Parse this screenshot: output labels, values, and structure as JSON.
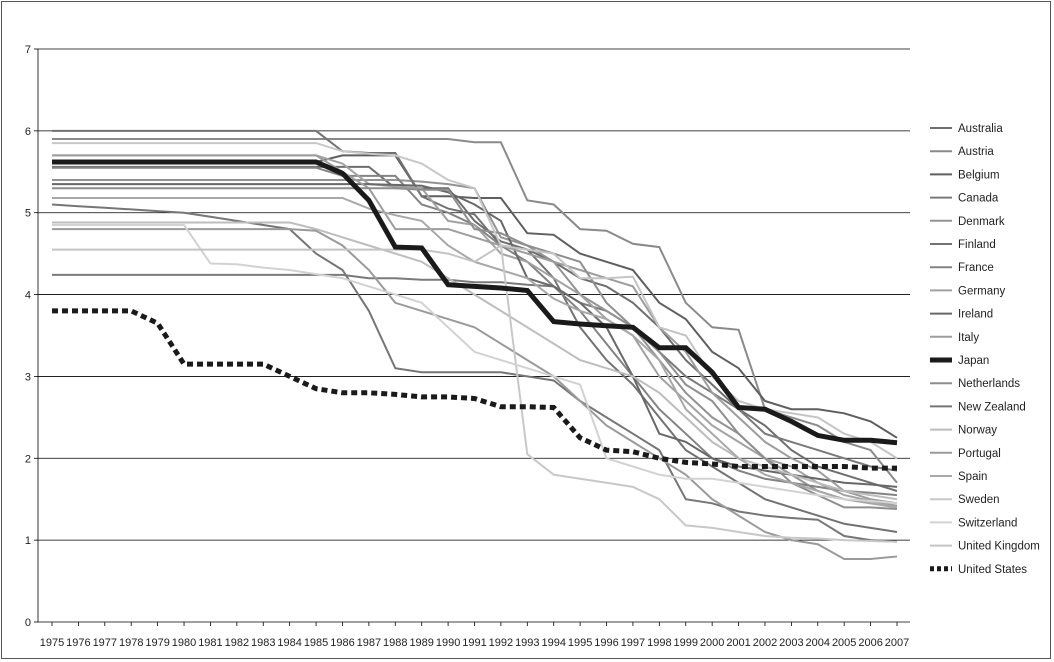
{
  "chart_data": {
    "type": "line",
    "title": "",
    "xlabel": "",
    "ylabel": "",
    "ylim": [
      0,
      7
    ],
    "yticks": [
      "0",
      "1",
      "2",
      "3",
      "4",
      "5",
      "6",
      "7"
    ],
    "grid": "horizontal",
    "legend_position": "right",
    "x": [
      "1975",
      "1976",
      "1977",
      "1978",
      "1979",
      "1980",
      "1981",
      "1982",
      "1983",
      "1984",
      "1985",
      "1986",
      "1987",
      "1988",
      "1989",
      "1990",
      "1991",
      "1992",
      "1993",
      "1994",
      "1995",
      "1996",
      "1997",
      "1998",
      "1999",
      "2000",
      "2001",
      "2002",
      "2003",
      "2004",
      "2005",
      "2006",
      "2007"
    ],
    "series": [
      {
        "name": "Australia",
        "color": "#6e6e6e",
        "width": 2,
        "dash": "",
        "values": [
          5.56,
          5.56,
          5.56,
          5.56,
          5.56,
          5.56,
          5.56,
          5.56,
          5.56,
          5.56,
          5.56,
          5.56,
          5.56,
          5.3,
          5.3,
          5.3,
          4.9,
          4.65,
          4.55,
          4.4,
          4.2,
          4.1,
          3.9,
          3.6,
          3.2,
          2.9,
          2.6,
          2.4,
          2.1,
          1.9,
          1.8,
          1.7,
          1.6
        ]
      },
      {
        "name": "Austria",
        "color": "#8a8a8a",
        "width": 2,
        "dash": "",
        "values": [
          5.9,
          5.9,
          5.9,
          5.9,
          5.9,
          5.9,
          5.9,
          5.9,
          5.9,
          5.9,
          5.9,
          5.9,
          5.9,
          5.9,
          5.9,
          5.9,
          5.86,
          5.86,
          5.15,
          5.1,
          4.8,
          4.78,
          4.62,
          4.58,
          3.9,
          3.6,
          3.57,
          2.6,
          2.5,
          2.4,
          2.2,
          2.1,
          1.7
        ]
      },
      {
        "name": "Belgium",
        "color": "#5f5f5f",
        "width": 2,
        "dash": "",
        "values": [
          5.62,
          5.62,
          5.62,
          5.62,
          5.62,
          5.62,
          5.62,
          5.62,
          5.62,
          5.62,
          5.62,
          5.7,
          5.7,
          5.7,
          5.2,
          5.2,
          5.18,
          5.18,
          4.75,
          4.73,
          4.5,
          4.4,
          4.3,
          3.9,
          3.7,
          3.3,
          3.1,
          2.7,
          2.6,
          2.6,
          2.55,
          2.45,
          2.25
        ]
      },
      {
        "name": "Canada",
        "color": "#7a7a7a",
        "width": 2,
        "dash": "",
        "values": [
          4.24,
          4.24,
          4.24,
          4.24,
          4.24,
          4.24,
          4.24,
          4.24,
          4.24,
          4.24,
          4.24,
          4.24,
          4.2,
          4.2,
          4.18,
          4.18,
          4.15,
          4.15,
          4.12,
          4.1,
          3.9,
          3.8,
          3.6,
          3.3,
          3.0,
          2.8,
          2.6,
          2.3,
          2.2,
          2.1,
          2.0,
          1.9,
          1.85
        ]
      },
      {
        "name": "Denmark",
        "color": "#939393",
        "width": 2,
        "dash": "",
        "values": [
          5.4,
          5.4,
          5.4,
          5.4,
          5.4,
          5.4,
          5.4,
          5.4,
          5.4,
          5.4,
          5.4,
          5.4,
          5.4,
          5.4,
          5.38,
          5.35,
          5.3,
          4.7,
          4.6,
          4.4,
          4.0,
          3.8,
          3.6,
          3.2,
          2.8,
          2.5,
          2.3,
          2.0,
          1.8,
          1.6,
          1.5,
          1.45,
          1.4
        ]
      },
      {
        "name": "Finland",
        "color": "#727272",
        "width": 2,
        "dash": "",
        "values": [
          6.0,
          6.0,
          6.0,
          6.0,
          6.0,
          6.0,
          6.0,
          6.0,
          6.0,
          6.0,
          6.0,
          5.75,
          5.73,
          5.73,
          5.2,
          5.05,
          4.98,
          4.6,
          4.55,
          4.2,
          3.6,
          3.2,
          2.9,
          2.5,
          2.1,
          1.9,
          1.7,
          1.5,
          1.4,
          1.3,
          1.2,
          1.15,
          1.1
        ]
      },
      {
        "name": "France",
        "color": "#838383",
        "width": 2,
        "dash": "",
        "values": [
          5.55,
          5.55,
          5.55,
          5.55,
          5.55,
          5.55,
          5.55,
          5.55,
          5.55,
          5.55,
          5.55,
          5.45,
          5.45,
          5.45,
          5.1,
          5.0,
          4.85,
          4.6,
          4.4,
          4.1,
          3.8,
          3.4,
          3.0,
          2.6,
          2.3,
          2.0,
          1.85,
          1.75,
          1.7,
          1.65,
          1.6,
          1.58,
          1.55
        ]
      },
      {
        "name": "Germany",
        "color": "#a2a2a2",
        "width": 2,
        "dash": "",
        "values": [
          5.7,
          5.7,
          5.7,
          5.7,
          5.7,
          5.7,
          5.7,
          5.7,
          5.7,
          5.7,
          5.7,
          5.6,
          5.35,
          5.32,
          5.3,
          4.9,
          4.85,
          4.5,
          4.4,
          4.2,
          4.0,
          3.7,
          3.5,
          3.0,
          2.7,
          2.4,
          2.2,
          2.0,
          1.9,
          1.7,
          1.55,
          1.48,
          1.42
        ]
      },
      {
        "name": "Ireland",
        "color": "#686868",
        "width": 2,
        "dash": "",
        "values": [
          5.35,
          5.35,
          5.35,
          5.35,
          5.35,
          5.35,
          5.35,
          5.35,
          5.35,
          5.35,
          5.35,
          5.35,
          5.35,
          5.34,
          5.33,
          5.25,
          5.1,
          4.9,
          4.2,
          4.1,
          3.9,
          3.6,
          3.0,
          2.3,
          2.2,
          2.0,
          1.9,
          1.85,
          1.8,
          1.75,
          1.7,
          1.68,
          1.65
        ]
      },
      {
        "name": "Italy",
        "color": "#9d9d9d",
        "width": 2,
        "dash": "",
        "values": [
          5.7,
          5.7,
          5.7,
          5.7,
          5.7,
          5.7,
          5.7,
          5.7,
          5.7,
          5.7,
          5.7,
          5.5,
          5.3,
          4.8,
          4.8,
          4.8,
          4.7,
          4.6,
          4.5,
          4.4,
          4.3,
          4.2,
          4.1,
          3.6,
          3.3,
          2.8,
          2.5,
          2.2,
          2.0,
          1.85,
          1.6,
          1.5,
          1.45
        ]
      },
      {
        "name": "Japan",
        "color": "#1a1a1a",
        "width": 5,
        "dash": "",
        "values": [
          5.62,
          5.62,
          5.62,
          5.62,
          5.62,
          5.62,
          5.62,
          5.62,
          5.62,
          5.62,
          5.62,
          5.48,
          5.15,
          4.58,
          4.57,
          4.12,
          4.1,
          4.08,
          4.05,
          3.67,
          3.64,
          3.62,
          3.6,
          3.35,
          3.35,
          3.05,
          2.62,
          2.6,
          2.45,
          2.28,
          2.22,
          2.22,
          2.19
        ]
      },
      {
        "name": "Netherlands",
        "color": "#8e8e8e",
        "width": 2,
        "dash": "",
        "values": [
          5.3,
          5.3,
          5.3,
          5.3,
          5.3,
          5.3,
          5.3,
          5.3,
          5.3,
          5.3,
          5.3,
          5.3,
          5.3,
          5.3,
          5.28,
          5.28,
          4.8,
          4.75,
          4.6,
          4.5,
          4.4,
          3.9,
          3.6,
          3.3,
          2.9,
          2.7,
          2.3,
          2.0,
          1.7,
          1.55,
          1.4,
          1.4,
          1.38
        ]
      },
      {
        "name": "New Zealand",
        "color": "#767676",
        "width": 2,
        "dash": "",
        "values": [
          5.1,
          5.08,
          5.06,
          5.04,
          5.02,
          5.0,
          4.95,
          4.9,
          4.85,
          4.8,
          4.5,
          4.3,
          3.8,
          3.1,
          3.05,
          3.05,
          3.05,
          3.05,
          3.0,
          2.95,
          2.7,
          2.5,
          2.3,
          2.1,
          1.5,
          1.45,
          1.35,
          1.3,
          1.27,
          1.25,
          1.05,
          1.0,
          0.98
        ]
      },
      {
        "name": "Norway",
        "color": "#bdbdbd",
        "width": 2,
        "dash": "",
        "values": [
          4.88,
          4.88,
          4.88,
          4.88,
          4.88,
          4.88,
          4.88,
          4.88,
          4.88,
          4.88,
          4.8,
          4.7,
          4.6,
          4.5,
          4.4,
          4.2,
          4.0,
          3.8,
          3.6,
          3.4,
          3.2,
          3.1,
          3.0,
          2.8,
          2.5,
          2.2,
          2.0,
          1.9,
          1.8,
          1.7,
          1.6,
          1.55,
          1.5
        ]
      },
      {
        "name": "Portugal",
        "color": "#9a9a9a",
        "width": 2,
        "dash": "",
        "values": [
          4.8,
          4.8,
          4.8,
          4.8,
          4.8,
          4.8,
          4.8,
          4.8,
          4.8,
          4.8,
          4.78,
          4.6,
          4.3,
          3.9,
          3.8,
          3.7,
          3.6,
          3.4,
          3.2,
          3.0,
          2.7,
          2.4,
          2.2,
          2.0,
          1.8,
          1.5,
          1.3,
          1.1,
          1.0,
          0.95,
          0.77,
          0.77,
          0.8
        ]
      },
      {
        "name": "Spain",
        "color": "#a8a8a8",
        "width": 2,
        "dash": "",
        "values": [
          5.18,
          5.18,
          5.18,
          5.18,
          5.18,
          5.18,
          5.18,
          5.18,
          5.18,
          5.18,
          5.18,
          5.18,
          5.05,
          4.97,
          4.9,
          4.6,
          4.4,
          4.3,
          4.2,
          3.95,
          3.8,
          3.7,
          3.5,
          3.2,
          2.6,
          2.3,
          2.0,
          1.8,
          1.7,
          1.6,
          1.5,
          1.45,
          1.4
        ]
      },
      {
        "name": "Sweden",
        "color": "#c8c8c8",
        "width": 2,
        "dash": "",
        "values": [
          5.85,
          5.85,
          5.85,
          5.85,
          5.85,
          5.85,
          5.85,
          5.85,
          5.85,
          5.85,
          5.85,
          5.75,
          5.72,
          5.7,
          5.6,
          5.4,
          5.3,
          4.6,
          2.05,
          1.8,
          1.75,
          1.7,
          1.65,
          1.5,
          1.18,
          1.15,
          1.1,
          1.05,
          1.03,
          1.02,
          1.0,
          0.99,
          0.98
        ]
      },
      {
        "name": "Switzerland",
        "color": "#d2d2d2",
        "width": 2,
        "dash": "",
        "values": [
          4.85,
          4.85,
          4.85,
          4.85,
          4.85,
          4.85,
          4.38,
          4.37,
          4.33,
          4.3,
          4.25,
          4.2,
          4.1,
          4.0,
          3.9,
          3.6,
          3.3,
          3.2,
          3.1,
          3.0,
          2.9,
          2.0,
          1.9,
          1.8,
          1.75,
          1.75,
          1.7,
          1.65,
          1.6,
          1.55,
          1.5,
          1.48,
          1.45
        ]
      },
      {
        "name": "United Kingdom",
        "color": "#c4c4c4",
        "width": 2,
        "dash": "",
        "values": [
          4.55,
          4.55,
          4.55,
          4.55,
          4.55,
          4.55,
          4.55,
          4.55,
          4.55,
          4.55,
          4.55,
          4.55,
          4.55,
          4.55,
          4.55,
          4.5,
          4.4,
          4.6,
          4.55,
          4.5,
          4.2,
          4.2,
          4.22,
          3.6,
          3.5,
          3.0,
          2.7,
          2.6,
          2.55,
          2.5,
          2.3,
          2.2,
          2.0
        ]
      },
      {
        "name": "United States",
        "color": "#1a1a1a",
        "width": 5,
        "dash": "6,4",
        "values": [
          3.8,
          3.8,
          3.8,
          3.8,
          3.65,
          3.15,
          3.15,
          3.15,
          3.15,
          3.0,
          2.85,
          2.8,
          2.8,
          2.78,
          2.75,
          2.75,
          2.73,
          2.63,
          2.63,
          2.62,
          2.25,
          2.1,
          2.08,
          2.0,
          1.95,
          1.93,
          1.9,
          1.9,
          1.9,
          1.9,
          1.9,
          1.88,
          1.88
        ]
      }
    ]
  }
}
